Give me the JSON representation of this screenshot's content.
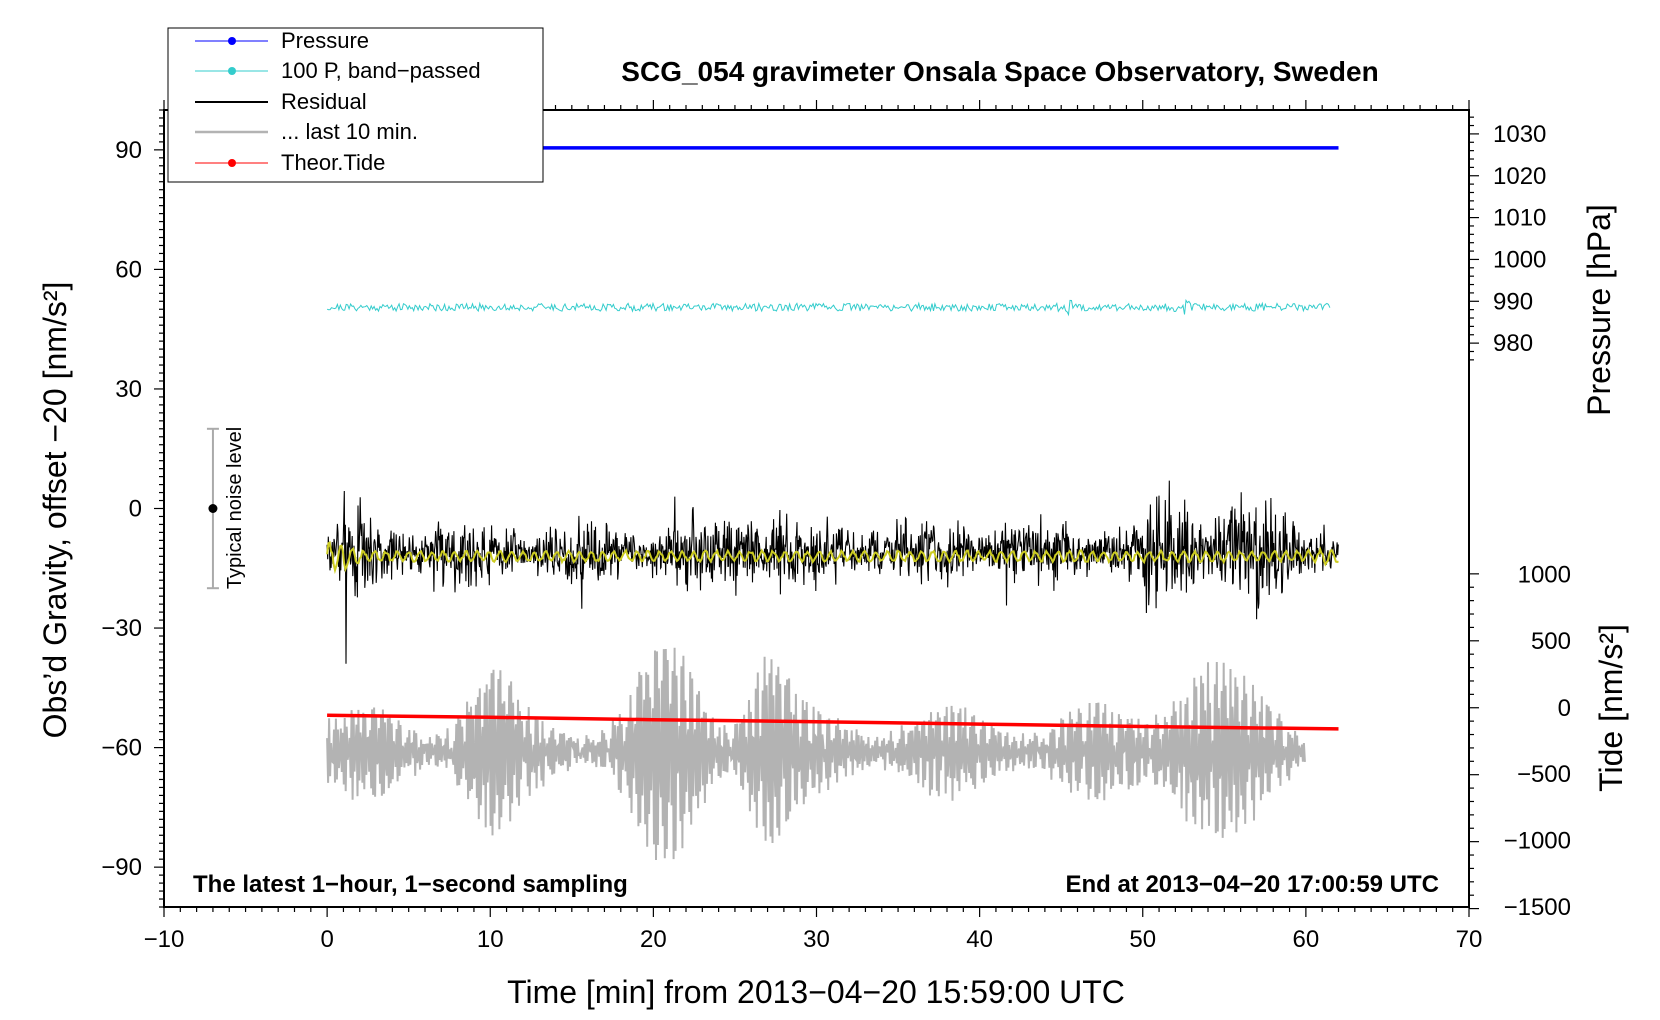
{
  "chart_data": {
    "type": "line",
    "title": "SCG_054 gravimeter Onsala Space Observatory, Sweden",
    "xlabel": "Time [min] from 2013−04−20 15:59:00 UTC",
    "ylabel": "Obs’d Gravity, offset −20 [nm/s²]",
    "ylabel_right_pressure": "Pressure [hPa]",
    "ylabel_right_tide": "Tide [nm/s²]",
    "xlim": [
      -10,
      70
    ],
    "ylim": [
      -100,
      100
    ],
    "x_ticks": [
      -10,
      0,
      10,
      20,
      30,
      40,
      50,
      60,
      70
    ],
    "x_tick_labels": [
      "−10",
      "0",
      "10",
      "20",
      "30",
      "40",
      "50",
      "60",
      "70"
    ],
    "y_ticks": [
      90,
      60,
      30,
      0,
      -30,
      -60,
      -90
    ],
    "y_tick_labels": [
      "90",
      "60",
      "30",
      "0",
      "−30",
      "−60",
      "−90"
    ],
    "pressure_axis": {
      "ticks": [
        1030,
        1020,
        1010,
        1000,
        990,
        980
      ],
      "tick_labels": [
        "1030",
        "1020",
        "1010",
        "1000",
        "990",
        "980"
      ],
      "gravity_equiv": [
        94,
        83.5,
        73,
        62.5,
        52,
        41.5
      ]
    },
    "tide_axis": {
      "ticks": [
        1000,
        500,
        0,
        -500,
        -1000,
        -1500
      ],
      "tick_labels": [
        "1000",
        "500",
        "0",
        "−500",
        "−1000",
        "−1500"
      ],
      "gravity_equiv": [
        -16.5,
        -33.2,
        -50,
        -66.6,
        -83.3,
        -100
      ]
    },
    "series": [
      {
        "name": "Pressure",
        "color": "#0000ff",
        "x": [
          0,
          62
        ],
        "y": [
          90.5,
          90.5
        ]
      },
      {
        "name": "100 P, band−passed",
        "color": "#33cccc",
        "x_range": [
          0,
          61.5
        ],
        "center": 50.5,
        "amplitude": 1.2
      },
      {
        "name": "Residual",
        "color": "#000000",
        "x_range": [
          0,
          62
        ],
        "center": -11,
        "amplitude": 18
      },
      {
        "name": "Residual (smoothed)",
        "color": "#cccc22",
        "x_range": [
          0,
          62
        ],
        "center": -12,
        "amplitude": 1.5
      },
      {
        "name": "... last 10 min.",
        "color": "#b3b3b3",
        "x_range": [
          0,
          60
        ],
        "center": -61,
        "amplitude": 16
      },
      {
        "name": "Theor.Tide",
        "color": "#ff0000",
        "x": [
          0,
          10,
          20,
          30,
          40,
          50,
          62
        ],
        "y": [
          -51.9,
          -52.4,
          -53.0,
          -53.5,
          -54.1,
          -54.7,
          -55.3
        ]
      }
    ],
    "noise_bar": {
      "label": "Typical noise level",
      "x": -7,
      "center": 0,
      "low": -20,
      "high": 20
    },
    "annotations": {
      "bottom_left": "The latest 1−hour, 1−second sampling",
      "bottom_right": "End at 2013−04−20 17:00:59 UTC"
    },
    "legend": {
      "placement": "top-left",
      "entries": [
        "Pressure",
        "100 P, band−passed",
        "Residual",
        "... last 10 min.",
        "Theor.Tide"
      ]
    }
  }
}
